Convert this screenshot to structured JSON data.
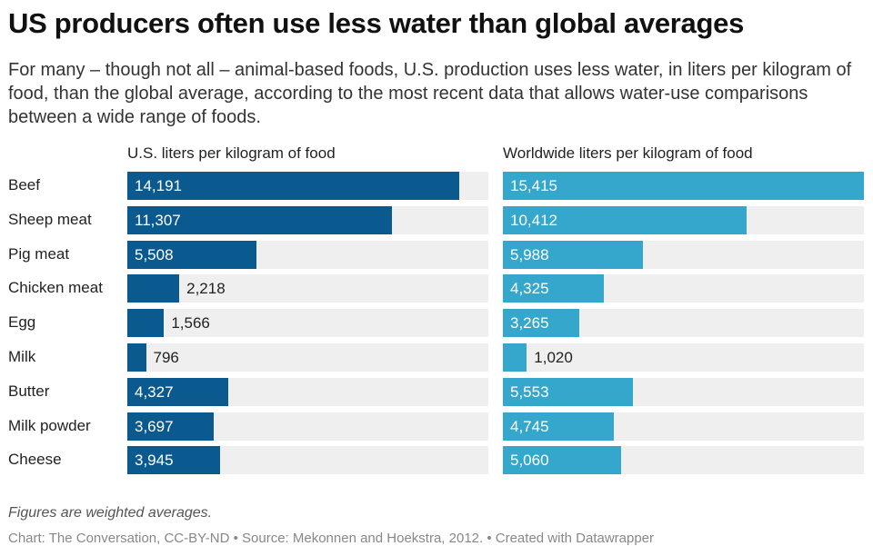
{
  "title": "US producers often use less water than global averages",
  "subtitle": "For many – though not all – animal-based foods, U.S. production uses less water, in liters per kilogram of food, than the global average, according to the most recent data that allows water-use comparisons between a wide range of foods.",
  "note": "Figures are weighted averages.",
  "source": "Chart: The Conversation, CC-BY-ND • Source: Mekonnen and Hoekstra, 2012. • Created with Datawrapper",
  "colors": {
    "us": "#0b5a8f",
    "world": "#35a7cc",
    "track": "#efefef"
  },
  "chart_data": {
    "type": "bar",
    "orientation": "horizontal",
    "categories": [
      "Beef",
      "Sheep meat",
      "Pig meat",
      "Chicken meat",
      "Egg",
      "Milk",
      "Butter",
      "Milk powder",
      "Cheese"
    ],
    "xlim": [
      0,
      15415
    ],
    "series": [
      {
        "name": "U.S. liters per kilogram of food",
        "values": [
          14191,
          11307,
          5508,
          2218,
          1566,
          796,
          4327,
          3697,
          3945
        ],
        "labels": [
          "14,191",
          "11,307",
          "5,508",
          "2,218",
          "1,566",
          "796",
          "4,327",
          "3,697",
          "3,945"
        ]
      },
      {
        "name": "Worldwide liters per kilogram of food",
        "values": [
          15415,
          10412,
          5988,
          4325,
          3265,
          1020,
          5553,
          4745,
          5060
        ],
        "labels": [
          "15,415",
          "10,412",
          "5,988",
          "4,325",
          "3,265",
          "1,020",
          "5,553",
          "4,745",
          "5,060"
        ]
      }
    ]
  }
}
